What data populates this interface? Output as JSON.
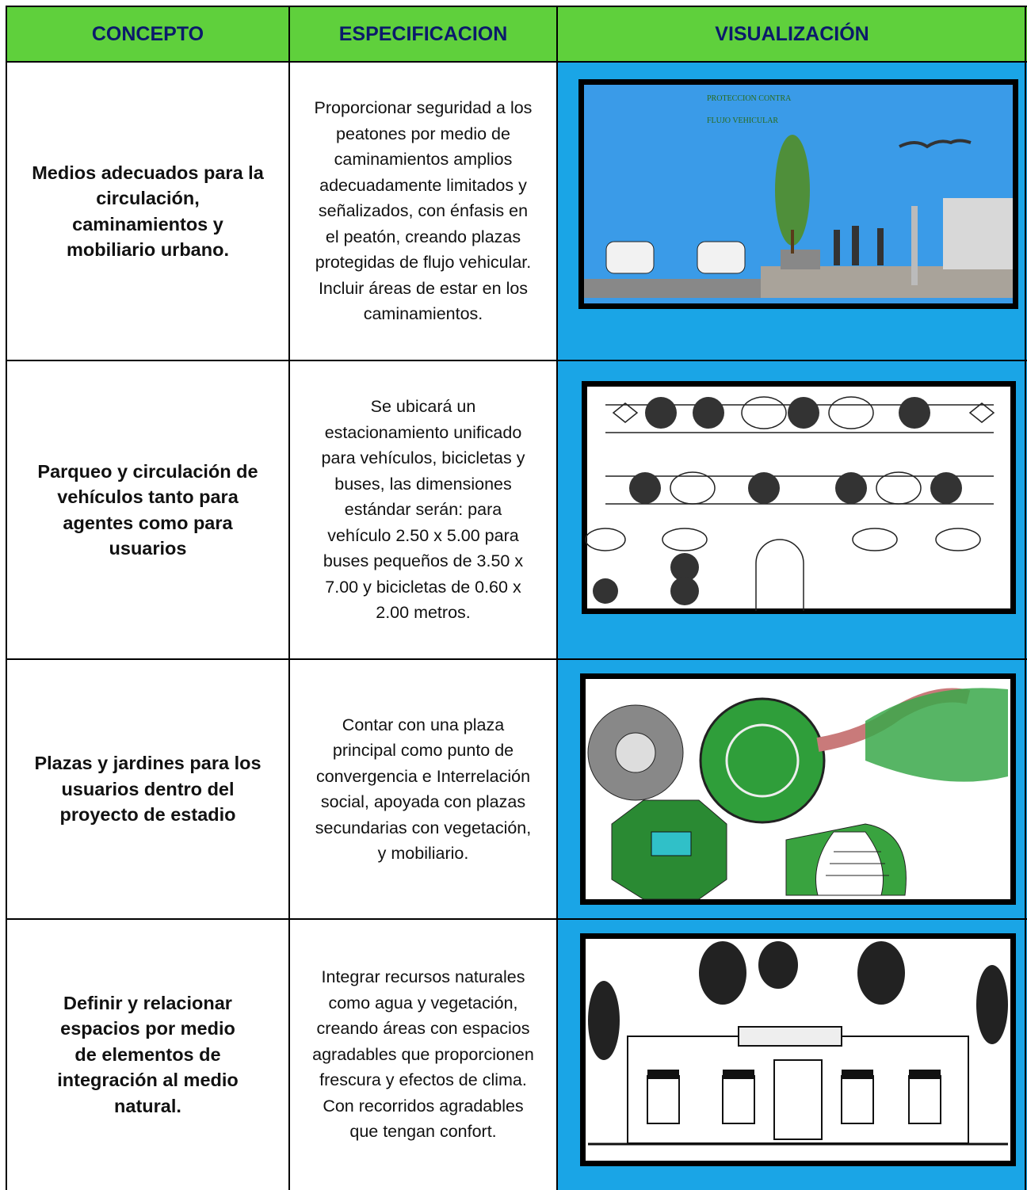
{
  "table": {
    "header": [
      "CONCEPTO",
      "ESPECIFICACION",
      "VISUALIZACIÓN"
    ],
    "rows": [
      {
        "concept": [
          "Medios adecuados para la",
          "circulación,",
          "caminamientos y",
          "mobiliario urbano."
        ],
        "spec": [
          "Proporcionar seguridad a los",
          "peatones por medio de",
          "caminamientos amplios",
          "adecuadamente limitados y",
          "señalizados, con énfasis en",
          "el peatón,  creando plazas",
          "protegidas de flujo vehicular.",
          "Incluir áreas de estar en los",
          "caminamientos."
        ],
        "image_text": [
          "PROTECCION CONTRA",
          "FLUJO VEHICULAR"
        ]
      },
      {
        "concept": [
          "Parqueo y circulación de",
          "vehículos tanto para",
          "agentes como para",
          "usuarios"
        ],
        "spec": [
          "Se ubicará  un",
          "estacionamiento unificado",
          "para vehículos, bicicletas y",
          "buses, las dimensiones",
          "estándar serán: para",
          "vehículo 2.50 x 5.00 para",
          "buses pequeños de 3.50 x",
          "7.00 y  bicicletas de 0.60 x",
          "2.00 metros."
        ]
      },
      {
        "concept": [
          "Plazas y jardines para los",
          "usuarios dentro del",
          "proyecto de estadio"
        ],
        "spec": [
          "Contar con una plaza",
          "principal como punto de",
          "convergencia e Interrelación",
          "social, apoyada con plazas",
          "secundarias con vegetación,",
          "y mobiliario."
        ]
      },
      {
        "concept": [
          "Definir y relacionar",
          "espacios por medio",
          "de elementos de",
          "integración al medio",
          "natural."
        ],
        "spec": [
          "Integrar recursos naturales",
          "como agua y vegetación,",
          "creando áreas con espacios",
          "agradables que proporcionen",
          "frescura y  efectos de clima.",
          "Con recorridos agradables",
          "que tengan confort."
        ]
      }
    ]
  }
}
